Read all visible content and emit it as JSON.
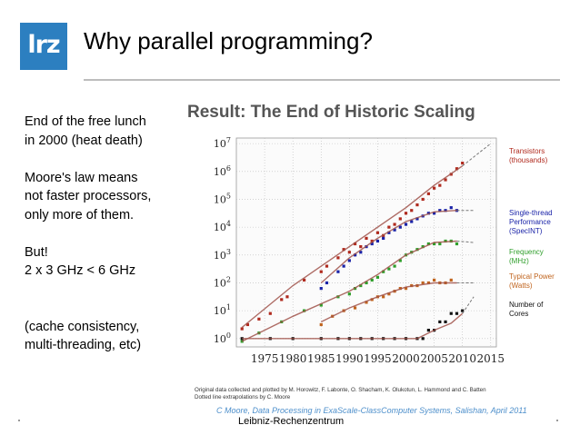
{
  "slide": {
    "logo_text": "lrz",
    "title": "Why parallel programming?",
    "footer": "Leibniz-Rechenzentrum"
  },
  "bullets": [
    [
      "End of the free lunch",
      "in 2000 (heat death)"
    ],
    [
      "Moore's law means",
      "not faster processors,",
      "only more of them."
    ],
    [
      "But!",
      "2 x 3 GHz < 6 GHz"
    ],
    [
      "(cache consistency,",
      "multi-threading, etc)"
    ]
  ],
  "figure": {
    "credit_lines": [
      "Original data collected and plotted by M. Horowitz, F. Labonte, O. Shacham, K. Olukotun, L. Hammond and C. Batten",
      "Dotted line extrapolations by C. Moore"
    ],
    "citation": "C Moore, Data Processing in ExaScale-ClassComputer Systems, Salishan, April 2011"
  },
  "chart_data": {
    "type": "scatter",
    "title": "Result: The End of Historic Scaling",
    "x_ticks": [
      1975,
      1980,
      1985,
      1990,
      1995,
      2000,
      2005,
      2010,
      2015
    ],
    "y_scale": "log",
    "y_tick_exponents": [
      0,
      1,
      2,
      3,
      4,
      5,
      6,
      7
    ],
    "xlim": [
      1970,
      2016
    ],
    "ylim_log10": [
      -0.3,
      7.2
    ],
    "grid": true,
    "series": [
      {
        "name": "Transistors",
        "unit": "(thousands)",
        "color": "#b02a1e",
        "trend": [
          [
            1971,
            0.4
          ],
          [
            1980,
            1.9
          ],
          [
            1990,
            3.3
          ],
          [
            2000,
            4.7
          ],
          [
            2005,
            5.5
          ],
          [
            2010,
            6.2
          ]
        ],
        "extrapolation": [
          [
            2010,
            6.2
          ],
          [
            2015,
            7.0
          ]
        ],
        "points": [
          [
            1971,
            0.35
          ],
          [
            1972,
            0.5
          ],
          [
            1974,
            0.7
          ],
          [
            1976,
            0.9
          ],
          [
            1978,
            1.4
          ],
          [
            1979,
            1.5
          ],
          [
            1982,
            2.1
          ],
          [
            1985,
            2.4
          ],
          [
            1986,
            2.6
          ],
          [
            1988,
            2.9
          ],
          [
            1989,
            3.2
          ],
          [
            1990,
            3.1
          ],
          [
            1991,
            3.4
          ],
          [
            1992,
            3.3
          ],
          [
            1993,
            3.6
          ],
          [
            1994,
            3.5
          ],
          [
            1995,
            3.8
          ],
          [
            1996,
            3.7
          ],
          [
            1997,
            4.0
          ],
          [
            1998,
            4.1
          ],
          [
            1999,
            4.3
          ],
          [
            2000,
            4.5
          ],
          [
            2001,
            4.6
          ],
          [
            2002,
            4.8
          ],
          [
            2003,
            5.0
          ],
          [
            2004,
            5.2
          ],
          [
            2005,
            5.4
          ],
          [
            2006,
            5.5
          ],
          [
            2007,
            5.7
          ],
          [
            2008,
            5.9
          ],
          [
            2009,
            6.1
          ],
          [
            2010,
            6.3
          ]
        ]
      },
      {
        "name": "Single-thread",
        "unit": "Performance",
        "extra": "(SpecINT)",
        "color": "#1a23a8",
        "trend": [
          [
            1985,
            2.0
          ],
          [
            1990,
            2.9
          ],
          [
            1995,
            3.6
          ],
          [
            2000,
            4.2
          ],
          [
            2005,
            4.55
          ],
          [
            2009,
            4.6
          ]
        ],
        "extrapolation": [
          [
            2009,
            4.6
          ],
          [
            2012,
            4.6
          ]
        ],
        "points": [
          [
            1985,
            1.8
          ],
          [
            1986,
            2.0
          ],
          [
            1988,
            2.4
          ],
          [
            1989,
            2.6
          ],
          [
            1990,
            2.8
          ],
          [
            1991,
            3.0
          ],
          [
            1992,
            3.1
          ],
          [
            1993,
            3.3
          ],
          [
            1994,
            3.4
          ],
          [
            1995,
            3.5
          ],
          [
            1996,
            3.6
          ],
          [
            1997,
            3.8
          ],
          [
            1998,
            3.9
          ],
          [
            1999,
            4.0
          ],
          [
            2000,
            4.1
          ],
          [
            2001,
            4.2
          ],
          [
            2002,
            4.3
          ],
          [
            2003,
            4.4
          ],
          [
            2004,
            4.5
          ],
          [
            2005,
            4.5
          ],
          [
            2006,
            4.6
          ],
          [
            2007,
            4.6
          ],
          [
            2008,
            4.7
          ],
          [
            2009,
            4.6
          ]
        ]
      },
      {
        "name": "Frequency",
        "unit": "(MHz)",
        "color": "#2e9e2a",
        "trend": [
          [
            1971,
            -0.1
          ],
          [
            1980,
            0.8
          ],
          [
            1990,
            1.7
          ],
          [
            1995,
            2.3
          ],
          [
            2000,
            3.0
          ],
          [
            2005,
            3.45
          ],
          [
            2009,
            3.5
          ]
        ],
        "extrapolation": [
          [
            2009,
            3.5
          ],
          [
            2012,
            3.45
          ]
        ],
        "points": [
          [
            1971,
            -0.1
          ],
          [
            1974,
            0.2
          ],
          [
            1978,
            0.6
          ],
          [
            1982,
            1.0
          ],
          [
            1985,
            1.2
          ],
          [
            1988,
            1.5
          ],
          [
            1990,
            1.6
          ],
          [
            1991,
            1.8
          ],
          [
            1992,
            1.9
          ],
          [
            1993,
            2.0
          ],
          [
            1994,
            2.1
          ],
          [
            1995,
            2.2
          ],
          [
            1996,
            2.4
          ],
          [
            1997,
            2.5
          ],
          [
            1998,
            2.6
          ],
          [
            1999,
            2.8
          ],
          [
            2000,
            3.0
          ],
          [
            2001,
            3.1
          ],
          [
            2002,
            3.2
          ],
          [
            2003,
            3.3
          ],
          [
            2004,
            3.4
          ],
          [
            2005,
            3.4
          ],
          [
            2006,
            3.4
          ],
          [
            2007,
            3.5
          ],
          [
            2008,
            3.5
          ],
          [
            2009,
            3.4
          ]
        ]
      },
      {
        "name": "Typical Power",
        "unit": "(Watts)",
        "color": "#c0641e",
        "trend": [
          [
            1985,
            0.6
          ],
          [
            1990,
            1.1
          ],
          [
            1995,
            1.5
          ],
          [
            2000,
            1.85
          ],
          [
            2005,
            2.0
          ],
          [
            2009,
            2.0
          ]
        ],
        "extrapolation": [
          [
            2009,
            2.0
          ],
          [
            2012,
            2.0
          ]
        ],
        "points": [
          [
            1985,
            0.5
          ],
          [
            1987,
            0.8
          ],
          [
            1989,
            1.0
          ],
          [
            1991,
            1.1
          ],
          [
            1993,
            1.3
          ],
          [
            1994,
            1.4
          ],
          [
            1995,
            1.5
          ],
          [
            1996,
            1.5
          ],
          [
            1997,
            1.6
          ],
          [
            1998,
            1.7
          ],
          [
            1999,
            1.8
          ],
          [
            2000,
            1.8
          ],
          [
            2001,
            1.9
          ],
          [
            2002,
            1.9
          ],
          [
            2003,
            2.0
          ],
          [
            2004,
            2.0
          ],
          [
            2005,
            2.1
          ],
          [
            2006,
            2.0
          ],
          [
            2007,
            2.0
          ],
          [
            2008,
            2.1
          ]
        ]
      },
      {
        "name": "Number of",
        "unit": "Cores",
        "color": "#111111",
        "trend": [
          [
            1971,
            0.0
          ],
          [
            2002,
            0.0
          ],
          [
            2005,
            0.3
          ],
          [
            2008,
            0.55
          ],
          [
            2010,
            0.9
          ]
        ],
        "extrapolation": [
          [
            2010,
            0.9
          ],
          [
            2012,
            1.5
          ]
        ],
        "points": [
          [
            1971,
            0.0
          ],
          [
            1976,
            0.0
          ],
          [
            1980,
            0.0
          ],
          [
            1985,
            0.0
          ],
          [
            1988,
            0.0
          ],
          [
            1990,
            0.0
          ],
          [
            1992,
            0.0
          ],
          [
            1994,
            0.0
          ],
          [
            1996,
            0.0
          ],
          [
            1998,
            0.0
          ],
          [
            2000,
            0.0
          ],
          [
            2002,
            0.0
          ],
          [
            2003,
            0.0
          ],
          [
            2004,
            0.3
          ],
          [
            2005,
            0.3
          ],
          [
            2006,
            0.6
          ],
          [
            2007,
            0.6
          ],
          [
            2008,
            0.9
          ],
          [
            2009,
            0.9
          ],
          [
            2010,
            1.0
          ]
        ]
      }
    ]
  }
}
